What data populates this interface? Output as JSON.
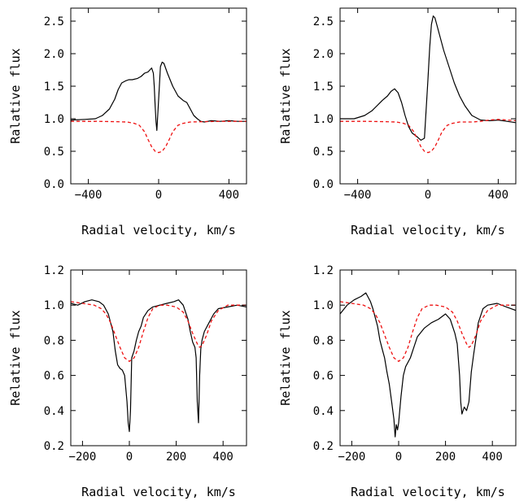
{
  "chart_data": [
    {
      "type": "line",
      "xlabel": "Radial velocity, km/s",
      "ylabel": "Ralative flux",
      "xlim": [
        -500,
        500
      ],
      "ylim": [
        0.0,
        2.7
      ],
      "xticks": [
        {
          "v": -400,
          "label": "−400"
        },
        {
          "v": 0,
          "label": "0"
        },
        {
          "v": 400,
          "label": "400"
        }
      ],
      "yticks": [
        {
          "v": 0.0,
          "label": "0.0"
        },
        {
          "v": 0.5,
          "label": "0.5"
        },
        {
          "v": 1.0,
          "label": "1.0"
        },
        {
          "v": 1.5,
          "label": "1.5"
        },
        {
          "v": 2.0,
          "label": "2.0"
        },
        {
          "v": 2.5,
          "label": "2.5"
        }
      ],
      "series": [
        {
          "style": "solid",
          "color": "#000000",
          "x": [
            -500,
            -420,
            -360,
            -320,
            -280,
            -250,
            -230,
            -210,
            -190,
            -170,
            -150,
            -120,
            -100,
            -80,
            -60,
            -50,
            -40,
            -30,
            -25,
            -20,
            -15,
            -10,
            0,
            10,
            20,
            30,
            50,
            80,
            110,
            140,
            160,
            180,
            200,
            220,
            240,
            260,
            300,
            350,
            400,
            450,
            500
          ],
          "y": [
            0.98,
            0.99,
            1.0,
            1.05,
            1.15,
            1.3,
            1.45,
            1.55,
            1.58,
            1.6,
            1.6,
            1.62,
            1.65,
            1.7,
            1.72,
            1.75,
            1.78,
            1.7,
            1.5,
            1.2,
            0.95,
            0.82,
            1.3,
            1.8,
            1.87,
            1.85,
            1.7,
            1.5,
            1.35,
            1.28,
            1.25,
            1.15,
            1.05,
            1.0,
            0.96,
            0.95,
            0.97,
            0.96,
            0.97,
            0.96,
            0.96
          ]
        },
        {
          "style": "dashed",
          "color": "#ee1111",
          "x": [
            -500,
            -350,
            -250,
            -180,
            -140,
            -110,
            -80,
            -60,
            -40,
            -20,
            0,
            20,
            40,
            60,
            80,
            110,
            140,
            180,
            250,
            350,
            500
          ],
          "y": [
            0.96,
            0.96,
            0.955,
            0.95,
            0.93,
            0.9,
            0.8,
            0.68,
            0.57,
            0.5,
            0.48,
            0.5,
            0.57,
            0.68,
            0.8,
            0.9,
            0.93,
            0.95,
            0.955,
            0.96,
            0.96
          ]
        }
      ]
    },
    {
      "type": "line",
      "xlabel": "Radial velocity, km/s",
      "ylabel": "Ralative flux",
      "xlim": [
        -500,
        500
      ],
      "ylim": [
        0.0,
        2.7
      ],
      "xticks": [
        {
          "v": -400,
          "label": "−400"
        },
        {
          "v": 0,
          "label": "0"
        },
        {
          "v": 400,
          "label": "400"
        }
      ],
      "yticks": [
        {
          "v": 0.0,
          "label": "0.0"
        },
        {
          "v": 0.5,
          "label": "0.5"
        },
        {
          "v": 1.0,
          "label": "1.0"
        },
        {
          "v": 1.5,
          "label": "1.5"
        },
        {
          "v": 2.0,
          "label": "2.0"
        },
        {
          "v": 2.5,
          "label": "2.5"
        }
      ],
      "series": [
        {
          "style": "solid",
          "color": "#000000",
          "x": [
            -500,
            -420,
            -360,
            -320,
            -290,
            -260,
            -230,
            -210,
            -190,
            -170,
            -150,
            -130,
            -110,
            -90,
            -60,
            -40,
            -20,
            0,
            10,
            20,
            30,
            40,
            50,
            70,
            90,
            120,
            150,
            180,
            210,
            250,
            300,
            350,
            400,
            450,
            500
          ],
          "y": [
            1.0,
            1.0,
            1.05,
            1.12,
            1.2,
            1.28,
            1.35,
            1.42,
            1.46,
            1.4,
            1.25,
            1.05,
            0.88,
            0.78,
            0.72,
            0.67,
            0.7,
            1.6,
            2.1,
            2.45,
            2.58,
            2.55,
            2.45,
            2.25,
            2.05,
            1.8,
            1.55,
            1.35,
            1.2,
            1.05,
            0.98,
            0.97,
            0.98,
            0.96,
            0.94
          ]
        },
        {
          "style": "dashed",
          "color": "#ee1111",
          "x": [
            -500,
            -350,
            -250,
            -180,
            -140,
            -110,
            -80,
            -60,
            -40,
            -20,
            0,
            20,
            40,
            60,
            80,
            110,
            140,
            180,
            250,
            300,
            350,
            400,
            450,
            500
          ],
          "y": [
            0.96,
            0.96,
            0.955,
            0.95,
            0.93,
            0.9,
            0.8,
            0.68,
            0.57,
            0.5,
            0.48,
            0.5,
            0.57,
            0.68,
            0.8,
            0.9,
            0.93,
            0.95,
            0.95,
            0.96,
            0.98,
            0.99,
            0.98,
            0.97
          ]
        }
      ]
    },
    {
      "type": "line",
      "xlabel": "Radial velocity, km/s",
      "ylabel": "Relative flux",
      "xlim": [
        -250,
        500
      ],
      "ylim": [
        0.2,
        1.2
      ],
      "xticks": [
        {
          "v": -200,
          "label": "−200"
        },
        {
          "v": 0,
          "label": "0"
        },
        {
          "v": 200,
          "label": "200"
        },
        {
          "v": 400,
          "label": "400"
        }
      ],
      "yticks": [
        {
          "v": 0.2,
          "label": "0.2"
        },
        {
          "v": 0.4,
          "label": "0.4"
        },
        {
          "v": 0.6,
          "label": "0.6"
        },
        {
          "v": 0.8,
          "label": "0.8"
        },
        {
          "v": 1.0,
          "label": "1.0"
        },
        {
          "v": 1.2,
          "label": "1.2"
        }
      ],
      "series": [
        {
          "style": "solid",
          "color": "#000000",
          "x": [
            -250,
            -220,
            -190,
            -160,
            -130,
            -110,
            -90,
            -70,
            -60,
            -50,
            -40,
            -30,
            -20,
            -10,
            -5,
            0,
            5,
            10,
            20,
            30,
            40,
            50,
            60,
            80,
            100,
            130,
            160,
            190,
            210,
            230,
            250,
            260,
            270,
            280,
            285,
            290,
            295,
            300,
            305,
            310,
            320,
            340,
            360,
            380,
            420,
            460,
            500
          ],
          "y": [
            1.01,
            1.0,
            1.02,
            1.03,
            1.02,
            1.0,
            0.95,
            0.85,
            0.74,
            0.66,
            0.64,
            0.63,
            0.6,
            0.45,
            0.33,
            0.28,
            0.4,
            0.7,
            0.74,
            0.8,
            0.85,
            0.88,
            0.93,
            0.97,
            0.99,
            1.0,
            1.01,
            1.02,
            1.03,
            1.0,
            0.92,
            0.85,
            0.79,
            0.76,
            0.7,
            0.45,
            0.33,
            0.6,
            0.75,
            0.8,
            0.85,
            0.9,
            0.95,
            0.98,
            0.99,
            1.0,
            0.99
          ]
        },
        {
          "style": "dashed",
          "color": "#ee1111",
          "x": [
            -250,
            -200,
            -150,
            -120,
            -100,
            -80,
            -60,
            -40,
            -20,
            0,
            20,
            40,
            60,
            80,
            100,
            130,
            160,
            200,
            230,
            250,
            270,
            290,
            300,
            310,
            330,
            350,
            380,
            420,
            460,
            500
          ],
          "y": [
            1.02,
            1.01,
            1.0,
            0.98,
            0.95,
            0.9,
            0.83,
            0.76,
            0.7,
            0.68,
            0.7,
            0.76,
            0.85,
            0.93,
            0.98,
            1.0,
            1.0,
            0.99,
            0.96,
            0.91,
            0.84,
            0.78,
            0.76,
            0.77,
            0.83,
            0.91,
            0.97,
            1.0,
            1.0,
            1.0
          ]
        }
      ]
    },
    {
      "type": "line",
      "xlabel": "Radial velocity, km/s",
      "ylabel": "Relative flux",
      "xlim": [
        -250,
        500
      ],
      "ylim": [
        0.2,
        1.2
      ],
      "xticks": [
        {
          "v": -200,
          "label": "−200"
        },
        {
          "v": 0,
          "label": "0"
        },
        {
          "v": 200,
          "label": "200"
        },
        {
          "v": 400,
          "label": "400"
        }
      ],
      "yticks": [
        {
          "v": 0.2,
          "label": "0.2"
        },
        {
          "v": 0.4,
          "label": "0.4"
        },
        {
          "v": 0.6,
          "label": "0.6"
        },
        {
          "v": 0.8,
          "label": "0.8"
        },
        {
          "v": 1.0,
          "label": "1.0"
        },
        {
          "v": 1.2,
          "label": "1.2"
        }
      ],
      "series": [
        {
          "style": "solid",
          "color": "#000000",
          "x": [
            -250,
            -220,
            -190,
            -160,
            -140,
            -120,
            -110,
            -100,
            -90,
            -80,
            -70,
            -60,
            -50,
            -40,
            -30,
            -20,
            -15,
            -10,
            -5,
            0,
            10,
            20,
            30,
            50,
            80,
            110,
            140,
            170,
            200,
            220,
            240,
            250,
            260,
            265,
            270,
            280,
            290,
            300,
            310,
            320,
            340,
            360,
            380,
            420,
            460,
            500
          ],
          "y": [
            0.95,
            1.0,
            1.03,
            1.05,
            1.07,
            1.02,
            0.98,
            0.93,
            0.88,
            0.8,
            0.75,
            0.7,
            0.62,
            0.55,
            0.45,
            0.35,
            0.25,
            0.32,
            0.29,
            0.33,
            0.48,
            0.6,
            0.65,
            0.7,
            0.82,
            0.87,
            0.9,
            0.92,
            0.95,
            0.92,
            0.84,
            0.78,
            0.6,
            0.45,
            0.38,
            0.42,
            0.4,
            0.45,
            0.62,
            0.72,
            0.9,
            0.98,
            1.0,
            1.01,
            0.99,
            0.97
          ]
        },
        {
          "style": "dashed",
          "color": "#ee1111",
          "x": [
            -250,
            -200,
            -150,
            -120,
            -100,
            -80,
            -60,
            -40,
            -20,
            0,
            20,
            40,
            60,
            80,
            100,
            130,
            160,
            200,
            230,
            250,
            270,
            290,
            300,
            310,
            330,
            350,
            380,
            420,
            460,
            500
          ],
          "y": [
            1.02,
            1.01,
            1.0,
            0.98,
            0.95,
            0.9,
            0.83,
            0.76,
            0.7,
            0.68,
            0.7,
            0.76,
            0.85,
            0.93,
            0.98,
            1.0,
            1.0,
            0.99,
            0.96,
            0.91,
            0.84,
            0.78,
            0.76,
            0.77,
            0.83,
            0.91,
            0.97,
            1.0,
            1.0,
            1.0
          ]
        }
      ]
    }
  ]
}
